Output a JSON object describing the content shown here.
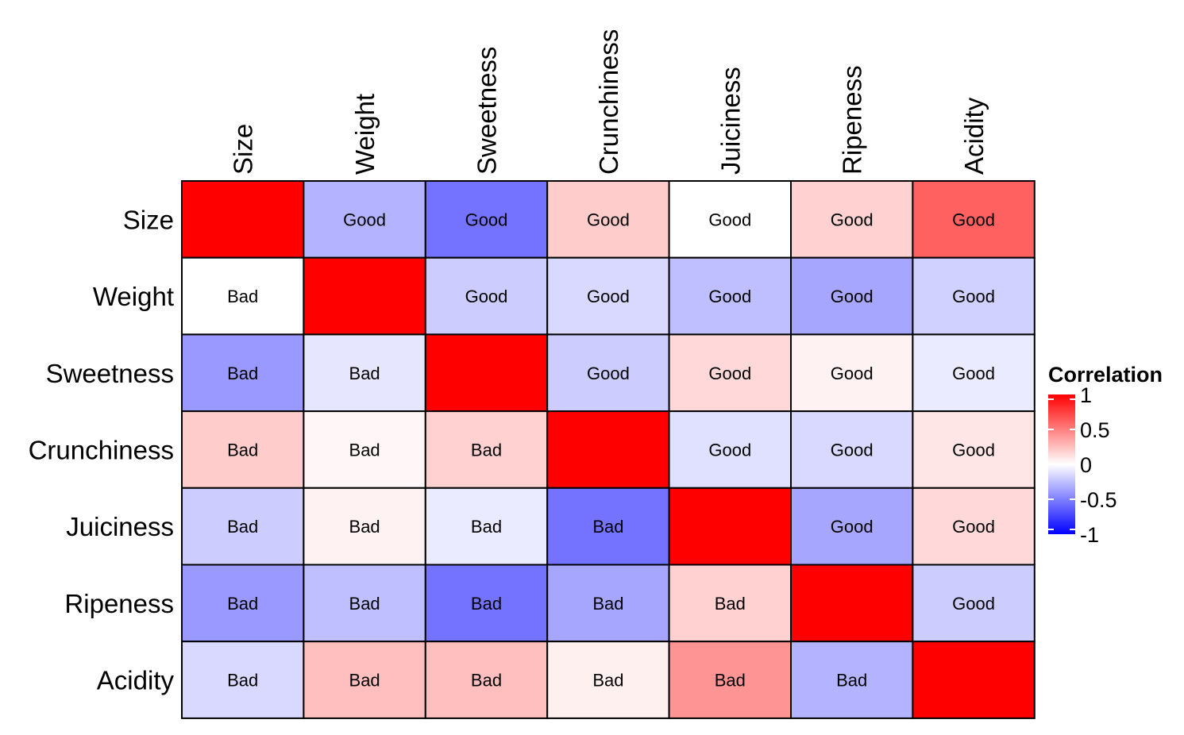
{
  "chart_data": {
    "type": "heatmap",
    "title": "",
    "xlabel": "",
    "ylabel": "",
    "variables": [
      "Size",
      "Weight",
      "Sweetness",
      "Crunchiness",
      "Juiciness",
      "Ripeness",
      "Acidity"
    ],
    "matrix": [
      [
        1.0,
        -0.3,
        -0.55,
        0.2,
        0.0,
        0.18,
        0.62
      ],
      [
        0.0,
        1.0,
        -0.2,
        -0.15,
        -0.25,
        -0.35,
        -0.18
      ],
      [
        -0.4,
        -0.1,
        1.0,
        -0.2,
        0.15,
        0.05,
        -0.08
      ],
      [
        0.2,
        0.03,
        0.18,
        1.0,
        -0.12,
        -0.15,
        0.1
      ],
      [
        -0.2,
        0.05,
        -0.08,
        -0.55,
        1.0,
        -0.35,
        0.15
      ],
      [
        -0.4,
        -0.25,
        -0.55,
        -0.35,
        0.18,
        1.0,
        -0.2
      ],
      [
        -0.15,
        0.25,
        0.25,
        0.06,
        0.42,
        -0.3,
        1.0
      ]
    ],
    "cell_labels": [
      [
        "",
        "Good",
        "Good",
        "Good",
        "Good",
        "Good",
        "Good"
      ],
      [
        "Bad",
        "",
        "Good",
        "Good",
        "Good",
        "Good",
        "Good"
      ],
      [
        "Bad",
        "Bad",
        "",
        "Good",
        "Good",
        "Good",
        "Good"
      ],
      [
        "Bad",
        "Bad",
        "Bad",
        "",
        "Good",
        "Good",
        "Good"
      ],
      [
        "Bad",
        "Bad",
        "Bad",
        "Bad",
        "",
        "Good",
        "Good"
      ],
      [
        "Bad",
        "Bad",
        "Bad",
        "Bad",
        "Bad",
        "",
        "Good"
      ],
      [
        "Bad",
        "Bad",
        "Bad",
        "Bad",
        "Bad",
        "Bad",
        ""
      ]
    ],
    "legend": {
      "title": "Correlation",
      "position": "right",
      "ticks": [
        1,
        0.5,
        0,
        -0.5,
        -1
      ],
      "tick_labels": [
        "1",
        "0.5",
        "0",
        "-0.5",
        "-1"
      ]
    },
    "colors": {
      "low": "#0000FF",
      "mid": "#FFFFFF",
      "high": "#FF0000",
      "border": "#000000"
    },
    "value_range": [
      -1,
      1
    ]
  }
}
